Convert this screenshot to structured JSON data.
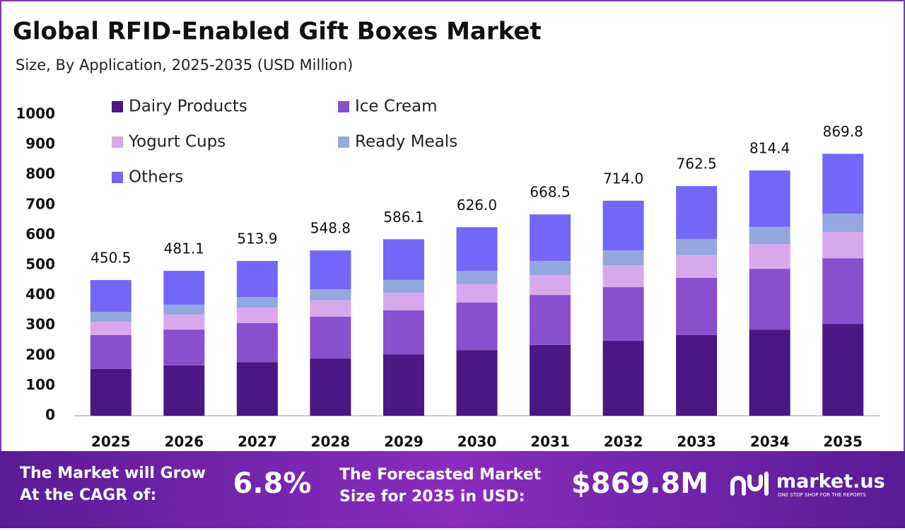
{
  "chart_data": {
    "type": "stacked-bar",
    "title": "Global RFID-Enabled Gift Boxes Market",
    "subtitle": "Size, By Application, 2025-2035 (USD Million)",
    "categories": [
      "2025",
      "2026",
      "2027",
      "2028",
      "2029",
      "2030",
      "2031",
      "2032",
      "2033",
      "2034",
      "2035"
    ],
    "series": [
      {
        "name": "Dairy Products",
        "color": "#4a1784",
        "values": [
          155,
          167,
          178,
          190,
          204,
          218,
          235,
          249,
          268,
          286,
          305
        ]
      },
      {
        "name": "Ice Cream",
        "color": "#8a4fcc",
        "values": [
          113,
          119,
          130,
          139,
          146,
          158,
          166,
          178,
          190,
          202,
          218
        ]
      },
      {
        "name": "Yogurt Cups",
        "color": "#d8a8ec",
        "values": [
          44,
          50,
          51,
          54,
          58,
          61,
          66,
          73,
          75,
          82,
          87
        ]
      },
      {
        "name": "Ready Meals",
        "color": "#94a8de",
        "values": [
          33,
          33,
          35,
          37,
          43,
          44,
          47,
          49,
          54,
          57,
          61
        ]
      },
      {
        "name": "Others",
        "color": "#7466f8",
        "values": [
          105.5,
          112.1,
          119.9,
          128.8,
          135.1,
          145,
          154.5,
          165,
          175.5,
          187.4,
          198.8
        ]
      }
    ],
    "totals": {
      "values": [
        450.5,
        481.1,
        513.9,
        548.8,
        586.1,
        626.0,
        668.5,
        714.0,
        762.5,
        814.4,
        869.8
      ],
      "value_labels": [
        "450.5",
        "481.1",
        "513.9",
        "548.8",
        "586.1",
        "626.0",
        "668.5",
        "714.0",
        "762.5",
        "814.4",
        "869.8"
      ]
    },
    "ylim": [
      0,
      1000
    ],
    "yticks": [
      0,
      100,
      200,
      300,
      400,
      500,
      600,
      700,
      800,
      900,
      1000
    ],
    "grid": false
  },
  "footer": {
    "cagr_text": [
      "The Market will Grow",
      "At the CAGR of:"
    ],
    "cagr": "6.8%",
    "forecast_text": [
      "The Forecasted Market",
      "Size for 2035 in USD:"
    ],
    "forecast": "$869.8M",
    "brand": "market.us",
    "tagline": "ONE STOP SHOP FOR THE REPORTS"
  }
}
